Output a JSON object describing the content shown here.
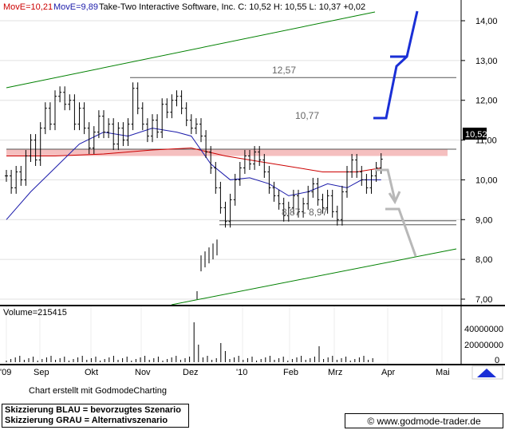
{
  "header": {
    "ma1_label": "MovE=10,21",
    "ma2_label": "MovE=9,89",
    "title": "Take-Two Interactive Software, Inc. C: 10,52 H: 10,55 L: 10,37 +0,02"
  },
  "volume_label": "Volume=215415",
  "credit": "Chart erstellt mit GodmodeCharting",
  "legend_lines": [
    "Skizzierung BLAU = bevorzugtes Szenario",
    "Skizzierung GRAU = Alternativszenario"
  ],
  "website": "www.godmode-trader.de",
  "copyright_symbol": "©",
  "colors": {
    "ma1": "#cc0000",
    "ma2": "#1a1aaa",
    "trend": "#008000",
    "blue_scenario": "#1a2fd6",
    "grey_scenario": "#b8b8b8",
    "zone": "#f4b8b8"
  },
  "chart_data": {
    "type": "line",
    "series": [
      {
        "name": "MovE=10,21",
        "period_ma": "long"
      },
      {
        "name": "MovE=9,89",
        "period_ma": "short"
      }
    ],
    "ylim": [
      6.9,
      14.2
    ],
    "yticks": [
      7,
      8,
      9,
      10,
      11,
      12,
      13,
      14
    ],
    "ytick_labels": [
      "7,00",
      "8,00",
      "9,00",
      "10,00",
      "11,00",
      "12,00",
      "13,00",
      "14,00"
    ],
    "xtick_labels": [
      "'09",
      "Sep",
      "Okt",
      "Nov",
      "Dez",
      "'10",
      "Feb",
      "Mrz",
      "Apr",
      "Mai"
    ],
    "last_price_label": "10,52",
    "level_labels": [
      "12,57",
      "10,77",
      "8,87 - 8,97"
    ],
    "levels": [
      12.57,
      10.77,
      8.97,
      8.87
    ],
    "resistance_zone": [
      10.6,
      10.77
    ],
    "price": [
      [
        0,
        10.1
      ],
      [
        1,
        9.8
      ],
      [
        2,
        10.2
      ],
      [
        3,
        10.0
      ],
      [
        4,
        10.6
      ],
      [
        5,
        11.0
      ],
      [
        6,
        10.5
      ],
      [
        7,
        11.3
      ],
      [
        8,
        11.8
      ],
      [
        9,
        11.4
      ],
      [
        10,
        12.1
      ],
      [
        11,
        12.2
      ],
      [
        12,
        11.9
      ],
      [
        13,
        12.0
      ],
      [
        14,
        11.4
      ],
      [
        15,
        11.8
      ],
      [
        16,
        11.3
      ],
      [
        17,
        10.8
      ],
      [
        18,
        11.2
      ],
      [
        19,
        11.6
      ],
      [
        20,
        11.2
      ],
      [
        21,
        11.4
      ],
      [
        22,
        10.9
      ],
      [
        23,
        11.3
      ],
      [
        24,
        11.0
      ],
      [
        25,
        11.4
      ],
      [
        26,
        12.3
      ],
      [
        27,
        11.8
      ],
      [
        28,
        11.4
      ],
      [
        29,
        11.1
      ],
      [
        30,
        11.5
      ],
      [
        31,
        11.2
      ],
      [
        32,
        11.9
      ],
      [
        33,
        11.7
      ],
      [
        34,
        12.0
      ],
      [
        35,
        12.1
      ],
      [
        36,
        11.8
      ],
      [
        37,
        11.5
      ],
      [
        38,
        11.3
      ],
      [
        39,
        11.4
      ],
      [
        40,
        11.1
      ],
      [
        41,
        10.7
      ],
      [
        42,
        10.3
      ],
      [
        43,
        9.8
      ],
      [
        44,
        9.3
      ],
      [
        45,
        8.95
      ],
      [
        46,
        9.5
      ],
      [
        47,
        10.0
      ],
      [
        48,
        10.3
      ],
      [
        49,
        10.6
      ],
      [
        50,
        10.4
      ],
      [
        51,
        10.7
      ],
      [
        52,
        10.5
      ],
      [
        53,
        10.2
      ],
      [
        54,
        9.8
      ],
      [
        55,
        9.6
      ],
      [
        56,
        9.4
      ],
      [
        57,
        9.1
      ],
      [
        58,
        9.3
      ],
      [
        59,
        9.6
      ],
      [
        60,
        9.2
      ],
      [
        61,
        9.4
      ],
      [
        62,
        9.7
      ],
      [
        63,
        9.9
      ],
      [
        64,
        9.5
      ],
      [
        65,
        9.3
      ],
      [
        66,
        9.6
      ],
      [
        67,
        9.2
      ],
      [
        68,
        9.0
      ],
      [
        69,
        9.7
      ],
      [
        70,
        10.2
      ],
      [
        71,
        10.5
      ],
      [
        72,
        10.2
      ],
      [
        73,
        10.0
      ],
      [
        74,
        9.8
      ],
      [
        75,
        10.1
      ],
      [
        76,
        10.3
      ],
      [
        77,
        10.52
      ]
    ],
    "dec_gap_price": [
      [
        38.5,
        7.0
      ],
      [
        39,
        7.9
      ],
      [
        40,
        8.0
      ],
      [
        41,
        8.1
      ],
      [
        42,
        8.2
      ],
      [
        43,
        8.3
      ]
    ],
    "ma_long": [
      [
        0,
        10.6
      ],
      [
        10,
        10.6
      ],
      [
        20,
        10.65
      ],
      [
        30,
        10.75
      ],
      [
        38,
        10.8
      ],
      [
        45,
        10.6
      ],
      [
        55,
        10.4
      ],
      [
        65,
        10.2
      ],
      [
        72,
        10.2
      ],
      [
        77,
        10.3
      ]
    ],
    "ma_short": [
      [
        0,
        9.0
      ],
      [
        5,
        9.7
      ],
      [
        10,
        10.3
      ],
      [
        15,
        10.9
      ],
      [
        20,
        11.2
      ],
      [
        25,
        11.1
      ],
      [
        30,
        11.3
      ],
      [
        35,
        11.2
      ],
      [
        38,
        11.1
      ],
      [
        42,
        10.4
      ],
      [
        46,
        10.0
      ],
      [
        50,
        10.05
      ],
      [
        54,
        9.9
      ],
      [
        58,
        9.6
      ],
      [
        62,
        9.7
      ],
      [
        66,
        9.9
      ],
      [
        70,
        9.8
      ],
      [
        73,
        10.0
      ],
      [
        77,
        10.0
      ]
    ],
    "volume_axis_labels": [
      "40000000",
      "20000000",
      "0"
    ]
  }
}
